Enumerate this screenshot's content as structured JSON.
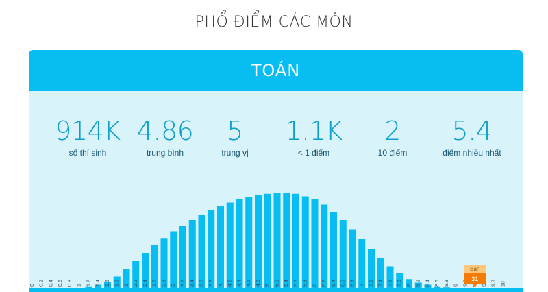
{
  "page": {
    "heading": "PHỔ ĐIỂM CÁC MÔN"
  },
  "subject": {
    "title": "TOÁN"
  },
  "stats": [
    {
      "value": "914K",
      "label": "số thí sinh"
    },
    {
      "value": "4.86",
      "label": "trung bình"
    },
    {
      "value": "5",
      "label": "trung vị"
    },
    {
      "value": "1.1K",
      "label": "< 1 điểm"
    },
    {
      "value": "2",
      "label": "10 điểm"
    },
    {
      "value": "5.4",
      "label": "điểm nhiều nhất"
    }
  ],
  "colors": {
    "bar": "#07bdf1",
    "card_bg": "#d9f3fb",
    "header": "#07bdf1",
    "marker": "#f57c00",
    "marker_light": "#ffc77a"
  },
  "chart_data": {
    "type": "bar",
    "categories": [
      "0",
      "0.2",
      "0.4",
      "0.6",
      "0.8",
      "1",
      "1.2",
      "1.4",
      "1.6",
      "1.8",
      "2",
      "2.2",
      "2.4",
      "2.6",
      "2.8",
      "3",
      "3.2",
      "3.4",
      "3.6",
      "3.8",
      "4",
      "4.2",
      "4.4",
      "4.6",
      "4.8",
      "5",
      "5.2",
      "5.4",
      "5.6",
      "5.8",
      "6",
      "6.2",
      "6.4",
      "6.6",
      "6.8",
      "7",
      "7.2",
      "7.4",
      "7.6",
      "7.8",
      "8",
      "8.2",
      "8.4",
      "8.6",
      "8.8",
      "9",
      "9.2",
      "9.4",
      "9.6",
      "9.8",
      "10"
    ],
    "tick_labels": [
      "0",
      "0.2",
      "0.4",
      "0.6",
      "0.8",
      "1",
      "1.2",
      "1.4",
      "1.6",
      "1.8",
      "2",
      "2.2",
      "2.4",
      "2.6",
      "2.8",
      "3",
      "3.2",
      "3.4",
      "3.6",
      "3.8",
      "4",
      "4.2",
      "4.4",
      "4.6",
      "4.8",
      "5",
      "5.2",
      "5.4",
      "5.6",
      "5.8",
      "6",
      "6.2",
      "6.4",
      "6.6",
      "6.8",
      "7",
      "7.2",
      "7.4",
      "7.6",
      "7.8",
      "8",
      "8.2",
      "8.4",
      "8.6",
      "8.8",
      "9",
      "9.2",
      "9.4",
      "9.6",
      "9.8",
      "10"
    ],
    "values": [
      0,
      0,
      0,
      0,
      0,
      0,
      3,
      6,
      12,
      22,
      36,
      52,
      68,
      83,
      97,
      110,
      121,
      132,
      142,
      152,
      159,
      166,
      172,
      177,
      181,
      183,
      184,
      185,
      183,
      178,
      172,
      162,
      148,
      132,
      114,
      95,
      76,
      58,
      42,
      28,
      17,
      10,
      6,
      3,
      1,
      0,
      0,
      0,
      0,
      0,
      0
    ],
    "ylim": [
      0,
      200
    ],
    "marker": {
      "label": "Bạn",
      "value": "31",
      "category": "9.4"
    },
    "xlabel": "",
    "ylabel": "",
    "grid": false
  }
}
